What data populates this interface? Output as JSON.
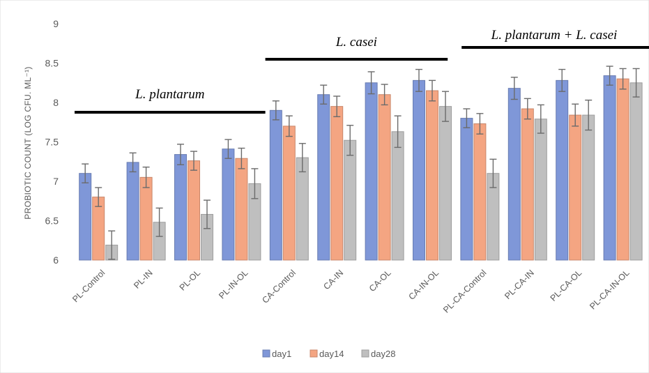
{
  "chart_data": {
    "type": "bar",
    "ylabel": "PROBIOTIC COUNT (LOG CFU. ML⁻¹)",
    "ylim": [
      6,
      9
    ],
    "yticks": [
      "6",
      "6.5",
      "7",
      "7.5",
      "8",
      "8.5",
      "9"
    ],
    "grid": false,
    "legend_position": "bottom",
    "categories": [
      "PL-Control",
      "PL-IN",
      "PL-OL",
      "PL-IN-OL",
      "CA-Control",
      "CA-IN",
      "CA-OL",
      "CA-IN-OL",
      "PL-CA-Control",
      "PL-CA-IN",
      "PL-CA-OL",
      "PL-CA-IN-OL"
    ],
    "series": [
      {
        "name": "day1",
        "color": "#7f97d8",
        "values": [
          7.1,
          7.24,
          7.34,
          7.41,
          7.9,
          8.1,
          8.25,
          8.28,
          7.8,
          8.18,
          8.28,
          8.34
        ],
        "errors": [
          0.12,
          0.12,
          0.13,
          0.12,
          0.12,
          0.12,
          0.14,
          0.14,
          0.12,
          0.14,
          0.14,
          0.12
        ]
      },
      {
        "name": "day14",
        "color": "#f4a582",
        "values": [
          6.8,
          7.05,
          7.26,
          7.29,
          7.7,
          7.95,
          8.1,
          8.15,
          7.73,
          7.92,
          7.84,
          8.3
        ],
        "errors": [
          0.12,
          0.13,
          0.12,
          0.13,
          0.13,
          0.13,
          0.13,
          0.13,
          0.13,
          0.13,
          0.14,
          0.13
        ]
      },
      {
        "name": "day28",
        "color": "#bfbfbf",
        "values": [
          6.19,
          6.48,
          6.58,
          6.97,
          7.3,
          7.52,
          7.63,
          7.95,
          7.1,
          7.79,
          7.84,
          8.25
        ],
        "errors": [
          0.18,
          0.18,
          0.18,
          0.19,
          0.18,
          0.19,
          0.2,
          0.19,
          0.18,
          0.18,
          0.19,
          0.18
        ]
      }
    ],
    "annotations": [
      {
        "text": "L. plantarum",
        "groups": [
          0,
          3
        ]
      },
      {
        "text": "L. casei",
        "groups": [
          4,
          7
        ]
      },
      {
        "text": "L. plantarum + L. casei",
        "groups": [
          8,
          11
        ]
      }
    ]
  }
}
